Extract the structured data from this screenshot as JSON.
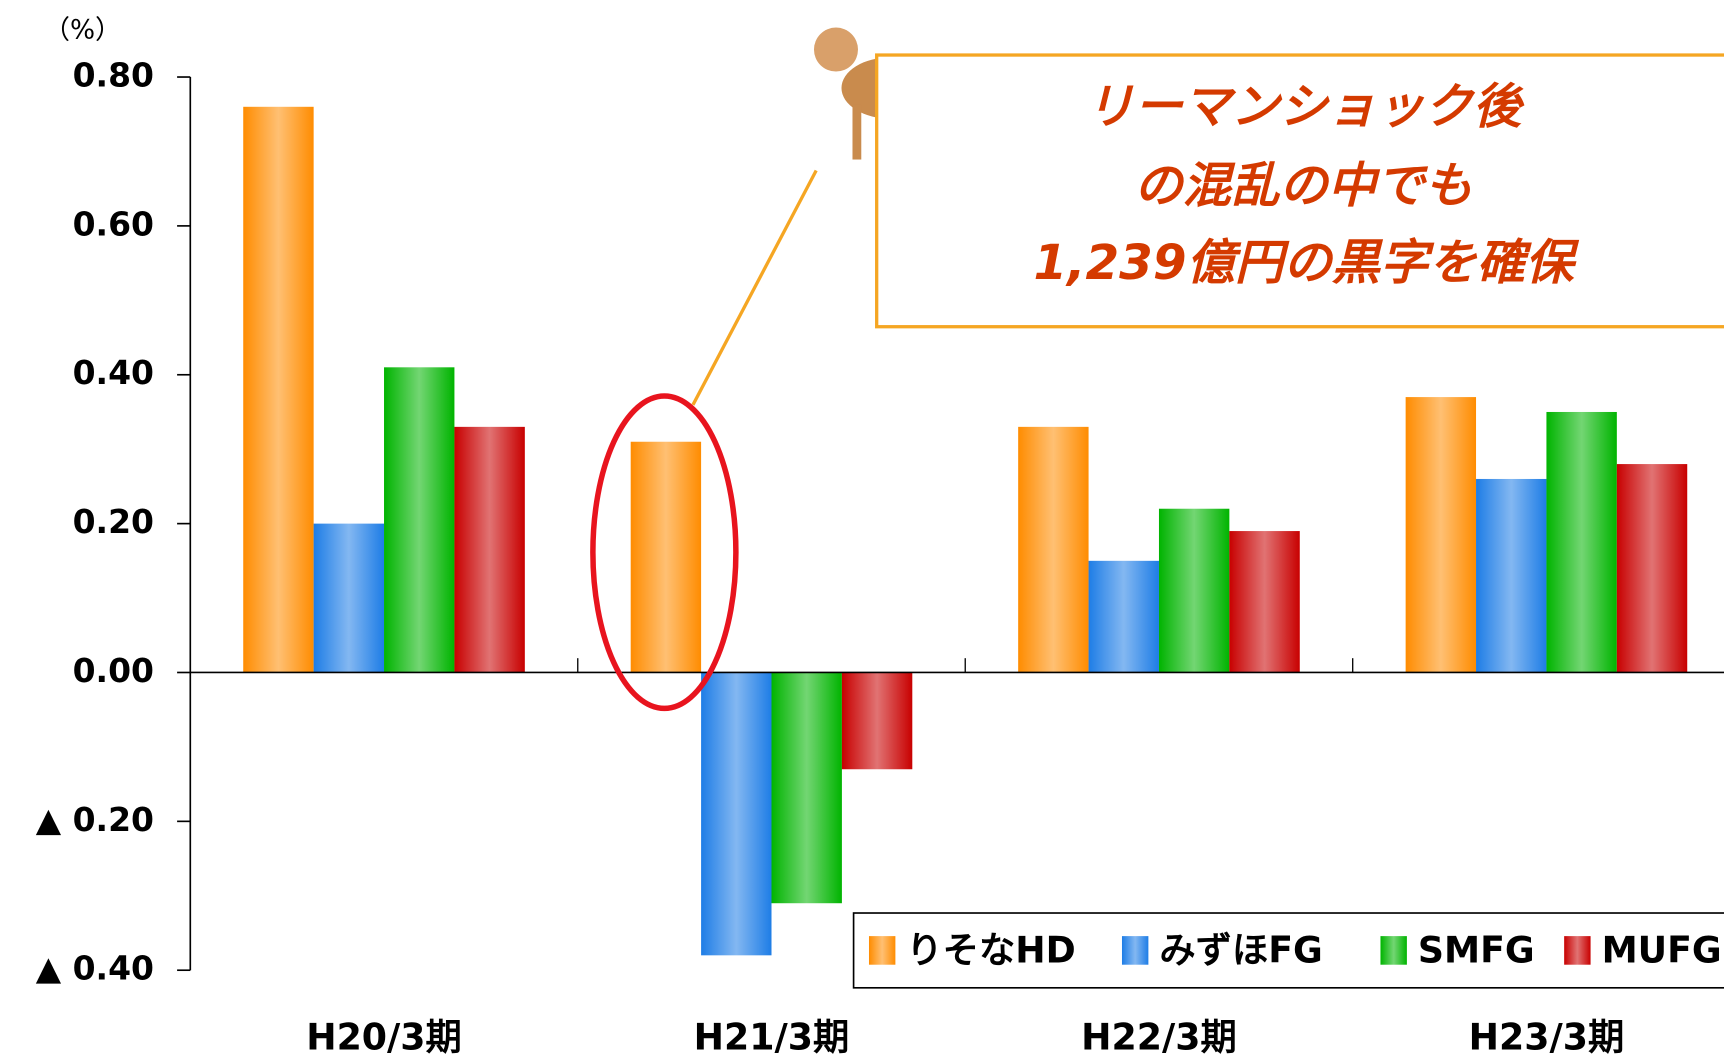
{
  "chart_data": {
    "type": "bar",
    "y_unit": "（%）",
    "categories": [
      "H20/3期",
      "H21/3期",
      "H22/3期",
      "H23/3期"
    ],
    "series": [
      {
        "name": "りそなHD",
        "color": "#ff8c00",
        "values": [
          0.76,
          0.31,
          0.33,
          0.37
        ]
      },
      {
        "name": "みずほFG",
        "color": "#1e7de6",
        "values": [
          0.2,
          -0.38,
          0.15,
          0.26
        ]
      },
      {
        "name": "SMFG",
        "color": "#00b400",
        "values": [
          0.41,
          -0.31,
          0.22,
          0.35
        ]
      },
      {
        "name": "MUFG",
        "color": "#c80000",
        "values": [
          0.33,
          -0.13,
          0.19,
          0.28
        ]
      }
    ],
    "ylim": [
      -0.4,
      0.8
    ],
    "yticks": [
      {
        "value": 0.8,
        "label": "0.80"
      },
      {
        "value": 0.6,
        "label": "0.60"
      },
      {
        "value": 0.4,
        "label": "0.40"
      },
      {
        "value": 0.2,
        "label": "0.20"
      },
      {
        "value": 0,
        "label": "0.00"
      },
      {
        "value": -0.2,
        "label": "▲ 0.20"
      },
      {
        "value": -0.4,
        "label": "▲ 0.40"
      }
    ],
    "annotation": [
      "リーマンショック後",
      "の混乱の中でも",
      "1,239億円の黒字を確保"
    ],
    "legend": "bottom-right"
  }
}
